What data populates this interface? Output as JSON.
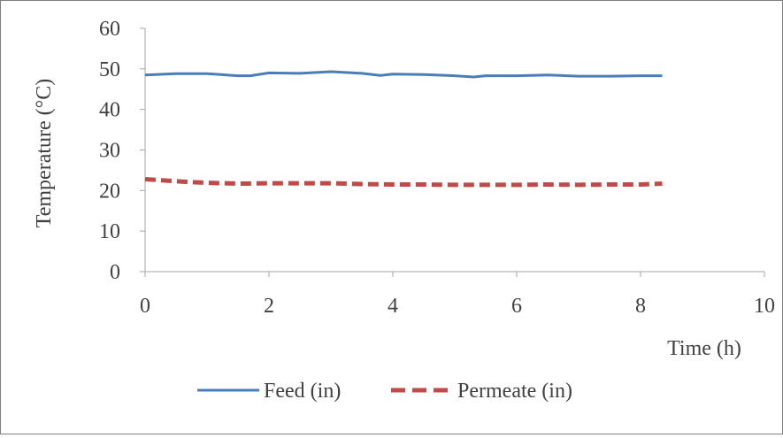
{
  "chart_data": {
    "type": "line",
    "title": "",
    "xlabel": "Time (h)",
    "ylabel": "Temperature (°C)",
    "xlim": [
      0,
      10
    ],
    "ylim": [
      0,
      60
    ],
    "x_ticks": [
      "0",
      "2",
      "4",
      "6",
      "8",
      "10"
    ],
    "y_ticks": [
      "0",
      "10",
      "20",
      "30",
      "40",
      "50",
      "60"
    ],
    "grid": false,
    "legend_position": "bottom",
    "series": [
      {
        "name": "Feed (in)",
        "color": "#4a7ebb",
        "style": "solid",
        "x": [
          0,
          0.5,
          1.0,
          1.5,
          1.7,
          2.0,
          2.5,
          3.0,
          3.5,
          3.8,
          4.0,
          4.5,
          5.0,
          5.3,
          5.5,
          6.0,
          6.5,
          7.0,
          7.5,
          8.0,
          8.35
        ],
        "y": [
          48.5,
          48.8,
          48.8,
          48.3,
          48.3,
          49.0,
          48.9,
          49.3,
          48.9,
          48.4,
          48.7,
          48.6,
          48.3,
          48.0,
          48.3,
          48.3,
          48.5,
          48.2,
          48.2,
          48.3,
          48.3
        ]
      },
      {
        "name": "Permeate (in)",
        "color": "#be4b48",
        "style": "dashed",
        "x": [
          0,
          0.3,
          0.7,
          1.0,
          1.5,
          2.0,
          2.5,
          3.0,
          3.5,
          4.0,
          4.5,
          5.0,
          5.5,
          6.0,
          6.5,
          7.0,
          7.5,
          8.0,
          8.35
        ],
        "y": [
          22.8,
          22.5,
          22.1,
          21.9,
          21.7,
          21.8,
          21.8,
          21.8,
          21.6,
          21.5,
          21.5,
          21.4,
          21.4,
          21.4,
          21.5,
          21.4,
          21.5,
          21.5,
          21.7
        ]
      }
    ]
  }
}
